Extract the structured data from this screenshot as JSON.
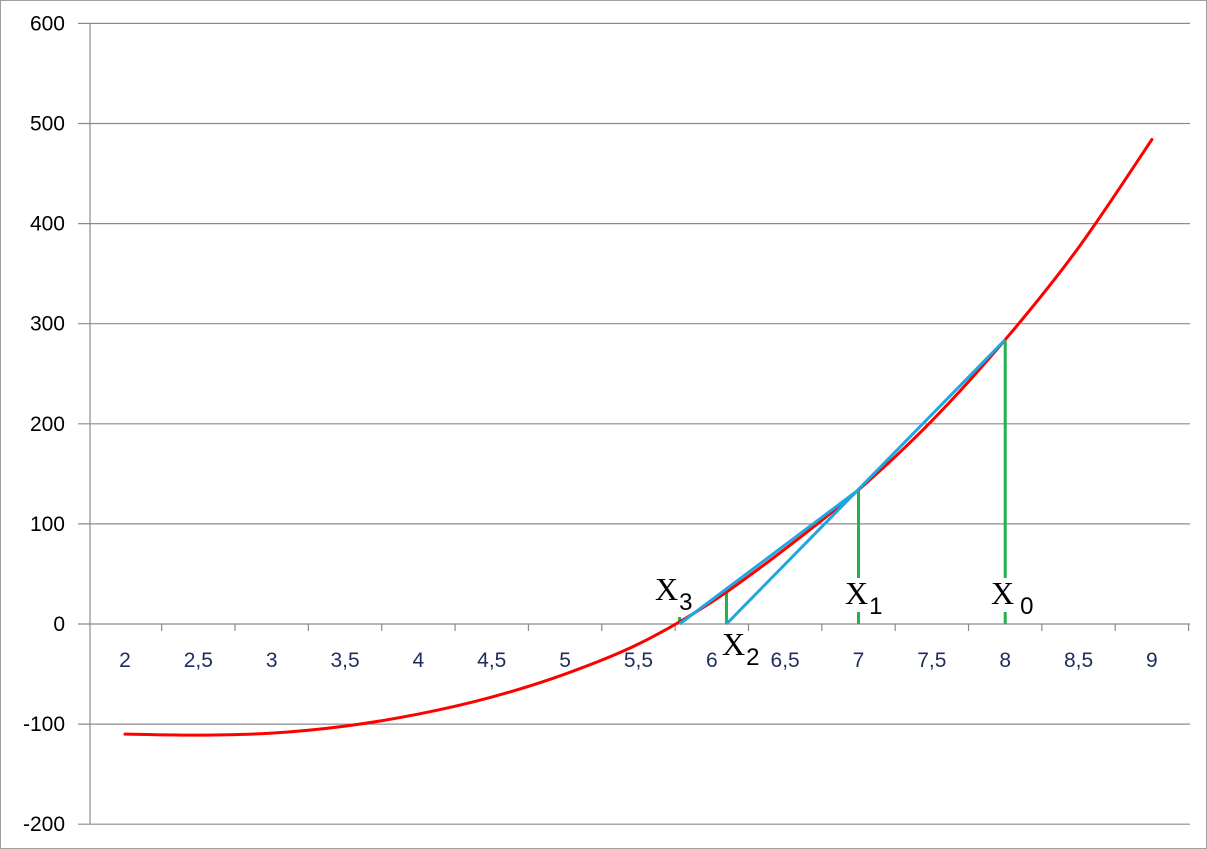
{
  "chart_data": {
    "type": "line",
    "title": "",
    "xlabel": "",
    "ylabel": "",
    "xlim": [
      2,
      9
    ],
    "ylim": [
      -200,
      600
    ],
    "y_ticks": [
      600,
      500,
      400,
      300,
      200,
      100,
      0,
      -100,
      -200
    ],
    "y_tick_labels": [
      "600",
      "500",
      "400",
      "300",
      "200",
      "100",
      "0",
      "-100",
      "-200"
    ],
    "x_ticks": [
      2,
      2.5,
      3,
      3.5,
      4,
      4.5,
      5,
      5.5,
      6,
      6.5,
      7,
      7.5,
      8,
      8.5,
      9
    ],
    "x_tick_labels": [
      "2",
      "2,5",
      "3",
      "3,5",
      "4",
      "4,5",
      "5",
      "5,5",
      "6",
      "6,5",
      "7",
      "7,5",
      "8",
      "8,5",
      "9"
    ],
    "grid": "horizontal",
    "legend": "none",
    "curve": {
      "color": "#ff0000",
      "x": [
        2,
        2.5,
        3,
        3.5,
        4,
        4.5,
        5,
        5.5,
        6,
        6.5,
        7,
        7.5,
        8,
        8.5,
        9
      ],
      "y": [
        -110,
        -111,
        -109,
        -102,
        -90,
        -73,
        -50,
        -20,
        22,
        75,
        134,
        203,
        284,
        376,
        484
      ]
    },
    "secant_lines": {
      "color": "#1ea7e1",
      "segments": [
        {
          "from": [
            8,
            284
          ],
          "to": [
            6.1,
            0
          ]
        },
        {
          "from": [
            7,
            134
          ],
          "to": [
            5.78,
            0
          ]
        }
      ]
    },
    "iterates": {
      "color": "#22b14c",
      "points": [
        {
          "label": "X",
          "sub": "0",
          "x": 8,
          "y": 284
        },
        {
          "label": "X",
          "sub": "1",
          "x": 7,
          "y": 134
        },
        {
          "label": "X",
          "sub": "2",
          "x": 6.1,
          "y": 35
        },
        {
          "label": "X",
          "sub": "3",
          "x": 5.78,
          "y": 7
        }
      ]
    }
  }
}
